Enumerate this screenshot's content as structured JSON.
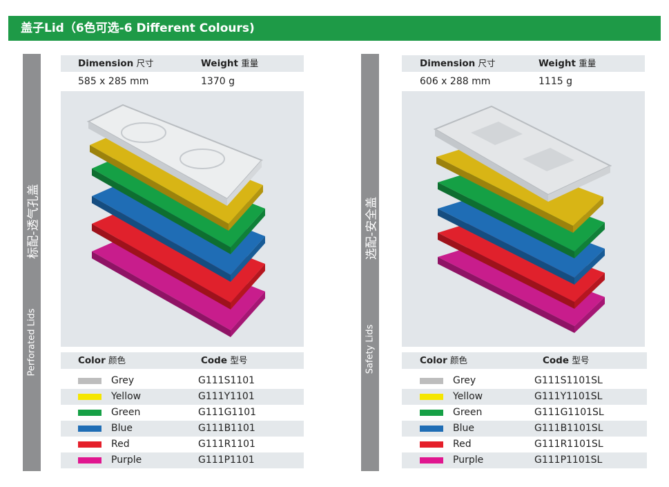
{
  "banner": {
    "title": "盖子Lid（6色可选-6 Different Colours)"
  },
  "colors": {
    "banner_green": "#1e9a47",
    "grey": "#bdbdbd",
    "yellow": "#f5e600",
    "green": "#16a046",
    "blue": "#1f6db5",
    "red": "#e51f2a",
    "purple": "#e0168f"
  },
  "left": {
    "side_cn": "标配-透气孔盖",
    "side_en": "Perforated Lids",
    "dim_label": "Dimension",
    "dim_label_cn": "尺寸",
    "weight_label": "Weight",
    "weight_label_cn": "重量",
    "dimension": "585 x 285 mm",
    "weight": "1370 g",
    "color_label": "Color",
    "color_label_cn": "颜色",
    "code_label": "Code",
    "code_label_cn": "型号",
    "rows": [
      {
        "name": "Grey",
        "code": "G111S1101"
      },
      {
        "name": "Yellow",
        "code": "G111Y1101"
      },
      {
        "name": "Green",
        "code": "G111G1101"
      },
      {
        "name": "Blue",
        "code": "G111B1101"
      },
      {
        "name": "Red",
        "code": "G111R1101"
      },
      {
        "name": "Purple",
        "code": "G111P1101"
      }
    ]
  },
  "right": {
    "side_cn": "选配-安全盖",
    "side_en": "Safety Lids",
    "dim_label": "Dimension",
    "dim_label_cn": "尺寸",
    "weight_label": "Weight",
    "weight_label_cn": "重量",
    "dimension": "606 x 288 mm",
    "weight": "1115 g",
    "color_label": "Color",
    "color_label_cn": "颜色",
    "code_label": "Code",
    "code_label_cn": "型号",
    "rows": [
      {
        "name": "Grey",
        "code": "G111S1101SL"
      },
      {
        "name": "Yellow",
        "code": "G111Y1101SL"
      },
      {
        "name": "Green",
        "code": "G111G1101SL"
      },
      {
        "name": "Blue",
        "code": "G111B1101SL"
      },
      {
        "name": "Red",
        "code": "G111R1101SL"
      },
      {
        "name": "Purple",
        "code": "G111P1101SL"
      }
    ]
  }
}
